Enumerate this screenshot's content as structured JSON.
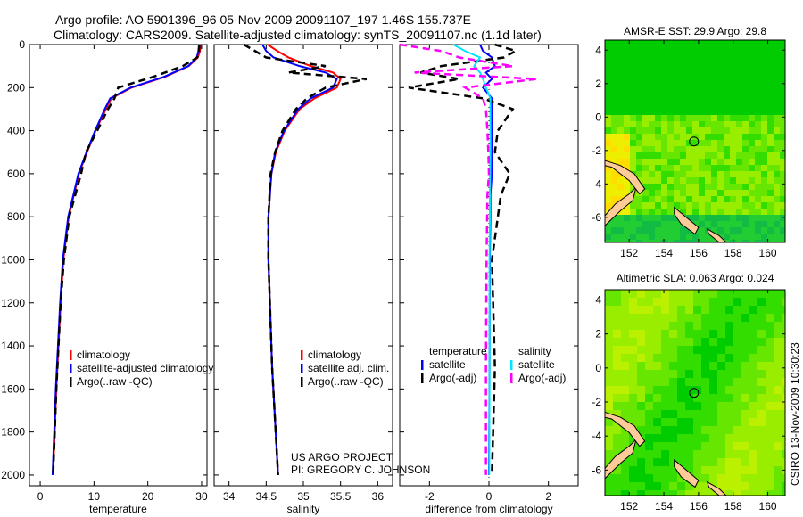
{
  "title": {
    "line1": "Argo profile: AO 5901396_96 05-Nov-2009 20091107_197 1.46S 155.737E",
    "line2": "Climatology: CARS2009. Satellite-adjusted climatology: synTS_20091107.nc (1.1d later)"
  },
  "credit": {
    "line1": "US ARGO PROJECT",
    "line2": "PI: GREGORY C. JOHNSON"
  },
  "side_label": "CSIRO 13-Nov-2009 10:30:23",
  "colors": {
    "climatology": "#ff0000",
    "satellite": "#0000ff",
    "argo": "#000000",
    "sal_satellite": "#00e5ff",
    "sal_argo": "#ff00ff",
    "land": "#ffcc99"
  },
  "chart_data": [
    {
      "type": "line",
      "name": "temperature",
      "xlabel": "temperature",
      "ylabel": "",
      "xlim": [
        -2,
        31
      ],
      "ylim": [
        2050,
        0
      ],
      "xticks": [
        0,
        10,
        20,
        30
      ],
      "yticks": [
        0,
        200,
        400,
        600,
        800,
        1000,
        1200,
        1400,
        1600,
        1800,
        2000
      ],
      "legend": [
        "climatology",
        "satellite-adjusted climatology",
        "Argo(..raw -QC)"
      ],
      "depth": [
        0,
        30,
        60,
        100,
        150,
        200,
        250,
        300,
        400,
        500,
        600,
        800,
        1000,
        1200,
        1400,
        1600,
        1800,
        2000
      ],
      "series": [
        {
          "name": "climatology",
          "color": "#ff0000",
          "values": [
            29.8,
            29.7,
            29.3,
            27.6,
            23.2,
            17,
            13.2,
            12.2,
            10.3,
            8.7,
            7.2,
            5.3,
            4.3,
            3.8,
            3.4,
            3.0,
            2.7,
            2.4
          ]
        },
        {
          "name": "satellite-adjusted climatology",
          "color": "#0000ff",
          "values": [
            29.5,
            29.4,
            29.1,
            27.5,
            23,
            16.8,
            13,
            12,
            10.2,
            8.6,
            7.1,
            5.2,
            4.2,
            3.7,
            3.3,
            2.9,
            2.6,
            2.3
          ]
        },
        {
          "name": "Argo(..raw -QC)",
          "color": "#000000",
          "dash": true,
          "values": [
            29.6,
            29.5,
            29.2,
            26.5,
            21,
            14.5,
            13.8,
            12.6,
            10.6,
            8.5,
            7.6,
            5.4,
            4.4,
            3.8,
            3.4,
            3.0,
            2.7,
            2.4
          ]
        }
      ]
    },
    {
      "type": "line",
      "name": "salinity",
      "xlabel": "salinity",
      "xlim": [
        33.8,
        36.2
      ],
      "ylim": [
        2050,
        0
      ],
      "xticks": [
        34,
        34.5,
        35,
        35.5,
        36
      ],
      "legend": [
        "climatology",
        "satellite adj. clim.",
        "Argo(..raw -QC)"
      ],
      "depth": [
        0,
        30,
        60,
        100,
        130,
        160,
        200,
        250,
        300,
        400,
        500,
        600,
        800,
        1000,
        1500,
        2000
      ],
      "series": [
        {
          "name": "climatology",
          "color": "#ff0000",
          "values": [
            34.52,
            34.65,
            34.8,
            35.1,
            35.4,
            35.5,
            35.45,
            35.15,
            34.95,
            34.75,
            34.63,
            34.57,
            34.53,
            34.53,
            34.58,
            34.66
          ]
        },
        {
          "name": "satellite adj. clim.",
          "color": "#0000ff",
          "values": [
            34.45,
            34.5,
            34.6,
            34.95,
            35.3,
            35.45,
            35.4,
            35.1,
            34.93,
            34.74,
            34.62,
            34.57,
            34.53,
            34.53,
            34.58,
            34.66
          ]
        },
        {
          "name": "Argo(..raw -QC)",
          "color": "#000000",
          "dash": true,
          "values": [
            34.2,
            34.35,
            34.5,
            35.3,
            34.8,
            35.85,
            35.3,
            35.05,
            34.9,
            34.72,
            34.62,
            34.56,
            34.53,
            34.53,
            34.58,
            34.66
          ]
        }
      ]
    },
    {
      "type": "line",
      "name": "difference",
      "xlabel": "difference from climatology",
      "xlim": [
        -3,
        3
      ],
      "ylim": [
        2050,
        0
      ],
      "xticks": [
        -2,
        0,
        2
      ],
      "legend_temperature": {
        "title": "temperature",
        "items": [
          "satellite",
          "Argo(-adj)"
        ]
      },
      "legend_salinity": {
        "title": "salinity",
        "items": [
          "satellite",
          "Argo(-adj)"
        ]
      },
      "depth": [
        0,
        30,
        60,
        100,
        130,
        160,
        200,
        250,
        300,
        400,
        500,
        600,
        700,
        800,
        1000,
        1500,
        2000
      ],
      "series": [
        {
          "name": "temperature satellite",
          "color": "#0000ff",
          "values": [
            -0.3,
            -0.2,
            0.1,
            0.2,
            -0.1,
            0.1,
            -0.2,
            0.1,
            0.1,
            0.1,
            0.1,
            0.1,
            0.05,
            0.05,
            0.03,
            0.02,
            0.0
          ]
        },
        {
          "name": "temperature Argo(-adj)",
          "color": "#000000",
          "dash": true,
          "values": [
            0.2,
            0.9,
            0.5,
            -1.6,
            -2.3,
            -1.0,
            -2.7,
            -0.2,
            0.8,
            0.3,
            0.2,
            0.7,
            0.4,
            0.3,
            0.1,
            0.2,
            0.1
          ]
        },
        {
          "name": "salinity satellite",
          "color": "#00e5ff",
          "values": [
            -1.2,
            -0.8,
            -0.3,
            -0.5,
            -0.3,
            -0.2,
            -0.1,
            0.05,
            0.05,
            0.05,
            0.05,
            0.04,
            0.03,
            0.03,
            0.02,
            0.02,
            0.01
          ]
        },
        {
          "name": "salinity Argo(-adj)",
          "color": "#ff00ff",
          "dash": true,
          "values": [
            -3,
            -1.6,
            -1.0,
            0.8,
            -2.5,
            1.6,
            -0.8,
            -0.2,
            -0.1,
            -0.05,
            -0.02,
            0.0,
            -0.05,
            -0.06,
            -0.08,
            -0.1,
            -0.1
          ]
        }
      ]
    },
    {
      "type": "heatmap",
      "name": "sst-map",
      "title": "AMSR-E SST: 29.9 Argo: 29.8",
      "xlim": [
        150.6,
        161
      ],
      "ylim": [
        -7.5,
        4.6
      ],
      "xticks": [
        152,
        154,
        156,
        158,
        160
      ],
      "yticks": [
        -6,
        -4,
        -2,
        0,
        2,
        4
      ],
      "marker": {
        "lon": 155.737,
        "lat": -1.46
      }
    },
    {
      "type": "heatmap",
      "name": "sla-map",
      "title": "Altimetric SLA: 0.063 Argo: 0.024",
      "xlim": [
        150.6,
        161
      ],
      "ylim": [
        -7.5,
        4.6
      ],
      "xticks": [
        152,
        154,
        156,
        158,
        160
      ],
      "yticks": [
        -6,
        -4,
        -2,
        0,
        2,
        4
      ],
      "marker": {
        "lon": 155.737,
        "lat": -1.46
      }
    }
  ]
}
